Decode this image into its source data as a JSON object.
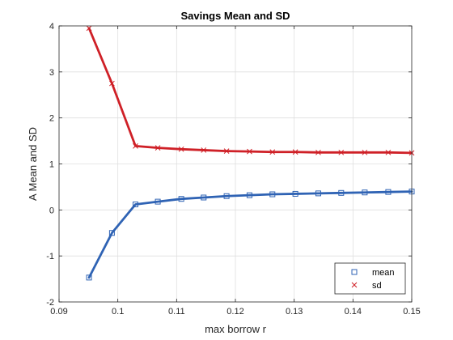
{
  "chart_data": {
    "type": "line",
    "title": "Savings Mean and SD",
    "xlabel": "max borrow r",
    "ylabel": "A Mean and SD",
    "xlim": [
      0.09,
      0.15
    ],
    "ylim": [
      -2,
      4
    ],
    "xticks": [
      0.09,
      0.1,
      0.11,
      0.12,
      0.13,
      0.14,
      0.15
    ],
    "xtick_labels": [
      "0.09",
      "0.1",
      "0.11",
      "0.12",
      "0.13",
      "0.14",
      "0.15"
    ],
    "yticks": [
      -2,
      -1,
      0,
      1,
      2,
      3,
      4
    ],
    "ytick_labels": [
      "-2",
      "-1",
      "0",
      "1",
      "2",
      "3",
      "4"
    ],
    "grid": true,
    "legend_position": "bottom-right",
    "x": [
      0.0951,
      0.099,
      0.103,
      0.1068,
      0.1108,
      0.1146,
      0.1185,
      0.1224,
      0.1263,
      0.1302,
      0.1341,
      0.138,
      0.142,
      0.146,
      0.15
    ],
    "series": [
      {
        "name": "mean",
        "color": "#2f63b4",
        "marker": "square",
        "values": [
          -1.47,
          -0.5,
          0.12,
          0.18,
          0.24,
          0.27,
          0.3,
          0.32,
          0.34,
          0.35,
          0.36,
          0.37,
          0.38,
          0.39,
          0.4
        ]
      },
      {
        "name": "sd",
        "color": "#cf2027",
        "marker": "x",
        "values": [
          3.95,
          2.75,
          1.39,
          1.35,
          1.32,
          1.3,
          1.28,
          1.27,
          1.26,
          1.26,
          1.25,
          1.25,
          1.25,
          1.25,
          1.24
        ]
      }
    ]
  }
}
